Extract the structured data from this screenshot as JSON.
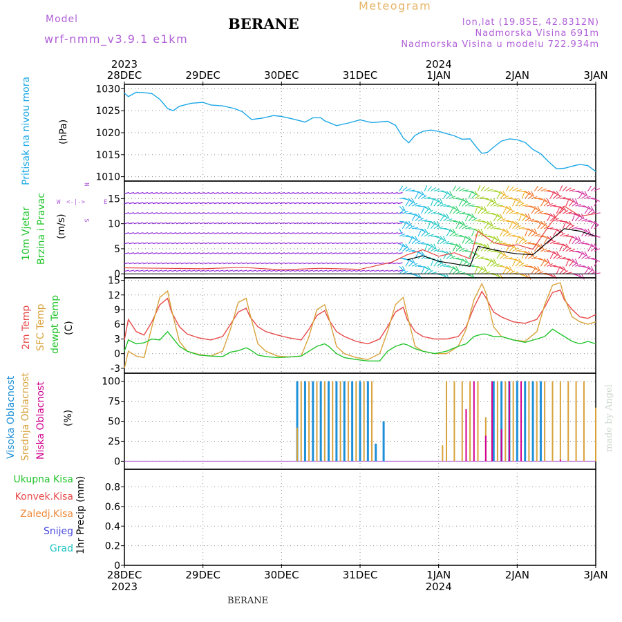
{
  "header": {
    "model_label": "Model",
    "model_name": "wrf-nmm_v3.9.1  e1km",
    "station": "BERANE",
    "product": "Meteogram",
    "coords": "lon,lat (19.85E, 42.8312N)",
    "elevation": "Nadmorska Visina 691m",
    "model_elevation": "Nadmorska Visina u modelu 722.934m"
  },
  "footer": {
    "station": "BERANE",
    "credit": "made by Angel"
  },
  "colors": {
    "pressure": "#1aa7e6",
    "temp2m": "#e84848",
    "sfc": "#d8a23a",
    "dewpt": "#22c42c",
    "cloud_high": "#1e90d8",
    "cloud_mid": "#d8a23a",
    "cloud_low": "#d1008f",
    "wind_calm": "#8a1fd6",
    "wind_speed": "#e64040",
    "gust": "#000000"
  },
  "time_axis": {
    "top_years": [
      {
        "at": 0,
        "label": "2023"
      },
      {
        "at": 4,
        "label": "2024"
      }
    ],
    "bottom_years": [
      {
        "at": 0,
        "label": "2023"
      },
      {
        "at": 4,
        "label": "2024"
      }
    ],
    "days": [
      "28DEC",
      "29DEC",
      "30DEC",
      "31DEC",
      "1JAN",
      "2JAN",
      "3JAN"
    ]
  },
  "panels": {
    "pressure": {
      "ylabel_main": "Pritisak na nivou mora",
      "unit": "(hPa)"
    },
    "wind": {
      "ylabel_1": "10m Vjetar",
      "ylabel_2": "Brzina i Pravac",
      "unit": "(m/s)",
      "compass_n": "N",
      "compass_s": "S",
      "compass_w": "W",
      "compass_e": "E"
    },
    "temp": {
      "label_2m": "2m Temp",
      "label_sfc": "SFC Temp",
      "label_dew": "dewpt Temp",
      "unit": "(C)"
    },
    "cloud": {
      "label_high": "Visoka Oblacnost",
      "label_mid": "Srednja Oblacnost",
      "label_low": "Niska Oblacnost",
      "unit": "(%)"
    },
    "precip": {
      "ylabel": "1hr Precip (mm)",
      "legend": [
        "Ukupna Kisa",
        "Konvek.Kisa",
        "Zaledj.Kisa",
        "Snijeg",
        "Grad"
      ]
    }
  },
  "chart_data": [
    {
      "type": "line",
      "id": "pressure",
      "x_unit": "days since 28DEC 2023 00h",
      "ylim": [
        1009,
        1031
      ],
      "yticks": [
        1010,
        1015,
        1020,
        1025,
        1030
      ],
      "grid": true,
      "series": [
        {
          "name": "Pritisak na nivou mora",
          "color_key": "pressure",
          "x": [
            0,
            0.05,
            0.15,
            0.25,
            0.35,
            0.45,
            0.55,
            0.62,
            0.7,
            0.85,
            1.0,
            1.1,
            1.25,
            1.4,
            1.5,
            1.62,
            1.75,
            1.9,
            2.0,
            2.15,
            2.3,
            2.4,
            2.5,
            2.55,
            2.7,
            2.85,
            3.0,
            3.15,
            3.35,
            3.45,
            3.55,
            3.62,
            3.7,
            3.8,
            3.9,
            4.0,
            4.1,
            4.2,
            4.3,
            4.4,
            4.5,
            4.55,
            4.62,
            4.7,
            4.8,
            4.9,
            5.0,
            5.1,
            5.2,
            5.3,
            5.4,
            5.5,
            5.6,
            5.7,
            5.8,
            5.9,
            6.0
          ],
          "y": [
            1029,
            1028.2,
            1029.2,
            1029.1,
            1028.9,
            1027.6,
            1025.5,
            1025,
            1026,
            1026.7,
            1026.9,
            1026.3,
            1026.1,
            1025.5,
            1024.8,
            1023,
            1023.3,
            1023.9,
            1023.7,
            1023.1,
            1022.4,
            1023.4,
            1023.4,
            1022.7,
            1021.6,
            1022.2,
            1022.9,
            1022.3,
            1022.6,
            1021.7,
            1018.8,
            1017.7,
            1019.4,
            1020.3,
            1020.6,
            1020.3,
            1019.8,
            1019.3,
            1018.5,
            1018.6,
            1016.3,
            1015.3,
            1015.5,
            1016.7,
            1018.1,
            1018.6,
            1018.4,
            1017.8,
            1016.2,
            1015.2,
            1013.4,
            1011.8,
            1011.9,
            1012.4,
            1012.8,
            1012.5,
            1011.2
          ]
        }
      ]
    },
    {
      "type": "scatter",
      "id": "wind",
      "x_unit": "days since 28DEC 2023 00h",
      "ylim": [
        -0.8,
        18.5
      ],
      "yticks": [
        0,
        5,
        10,
        15
      ],
      "grid": true,
      "series": [
        {
          "name": "Brzina",
          "color_key": "wind_speed",
          "x": [
            0,
            0.5,
            1.0,
            1.5,
            2.0,
            2.5,
            3.0,
            3.4,
            3.6,
            3.8,
            4.0,
            4.2,
            4.4,
            4.5,
            4.7,
            4.9,
            5.0,
            5.2,
            5.4,
            5.6,
            5.8,
            6.0
          ],
          "y": [
            1.2,
            1.1,
            1.0,
            1.3,
            0.8,
            1.1,
            0.9,
            2.3,
            3.8,
            4.8,
            3.5,
            4.2,
            3.0,
            8.5,
            6.2,
            5.5,
            5.8,
            4.9,
            9.5,
            13.5,
            11.5,
            12.0
          ]
        },
        {
          "name": "Udar",
          "color_key": "gust",
          "x": [
            3.6,
            3.8,
            4.0,
            4.2,
            4.4,
            4.5,
            4.7,
            4.9,
            5.0,
            5.2,
            5.4,
            5.6,
            5.8,
            6.0
          ],
          "y": [
            2.8,
            3.6,
            2.5,
            2.0,
            1.5,
            5.5,
            4.8,
            4.2,
            4.0,
            3.8,
            6.5,
            9.0,
            8.5,
            7.5
          ]
        }
      ]
    },
    {
      "type": "line",
      "id": "temperature",
      "x_unit": "days since 28DEC 2023 00h",
      "ylim": [
        -4,
        15.5
      ],
      "yticks": [
        -3,
        0,
        3,
        6,
        9,
        12,
        15
      ],
      "grid": true,
      "series": [
        {
          "name": "2m Temp",
          "color_key": "temp2m",
          "x": [
            0,
            0.05,
            0.15,
            0.25,
            0.35,
            0.45,
            0.55,
            0.6,
            0.7,
            0.8,
            0.95,
            1.1,
            1.25,
            1.35,
            1.45,
            1.55,
            1.6,
            1.7,
            1.8,
            1.95,
            2.1,
            2.25,
            2.35,
            2.45,
            2.55,
            2.6,
            2.7,
            2.8,
            2.95,
            3.1,
            3.25,
            3.35,
            3.45,
            3.55,
            3.6,
            3.7,
            3.8,
            3.95,
            4.1,
            4.25,
            4.35,
            4.45,
            4.55,
            4.6,
            4.7,
            4.8,
            4.95,
            5.1,
            5.25,
            5.35,
            5.45,
            5.55,
            5.6,
            5.7,
            5.8,
            5.9,
            6.0
          ],
          "y": [
            2.8,
            7.0,
            4.5,
            3.8,
            6.5,
            10.0,
            11.3,
            8.5,
            5.5,
            4.0,
            3.2,
            2.8,
            3.5,
            6.0,
            8.5,
            9.3,
            7.5,
            5.5,
            4.5,
            3.8,
            3.2,
            2.8,
            5.0,
            7.8,
            8.8,
            7.0,
            4.5,
            3.5,
            2.5,
            2.0,
            3.0,
            5.5,
            8.5,
            9.5,
            7.0,
            4.5,
            3.5,
            3.0,
            3.0,
            3.5,
            5.5,
            9.5,
            12.7,
            11.5,
            8.5,
            7.5,
            6.5,
            6.2,
            7.0,
            9.5,
            12.5,
            13.0,
            11.0,
            9.0,
            7.5,
            7.2,
            8.0
          ]
        },
        {
          "name": "SFC Temp",
          "color_key": "sfc",
          "x": [
            0,
            0.05,
            0.15,
            0.25,
            0.35,
            0.45,
            0.55,
            0.6,
            0.7,
            0.8,
            0.95,
            1.1,
            1.25,
            1.35,
            1.45,
            1.55,
            1.6,
            1.7,
            1.8,
            1.95,
            2.1,
            2.25,
            2.35,
            2.45,
            2.55,
            2.6,
            2.7,
            2.8,
            2.95,
            3.1,
            3.25,
            3.35,
            3.45,
            3.55,
            3.6,
            3.7,
            3.8,
            3.95,
            4.1,
            4.25,
            4.35,
            4.45,
            4.55,
            4.6,
            4.7,
            4.8,
            4.95,
            5.1,
            5.25,
            5.35,
            5.45,
            5.55,
            5.6,
            5.7,
            5.8,
            5.9,
            6.0
          ],
          "y": [
            -3.0,
            0.5,
            -0.5,
            -0.8,
            5.5,
            11.5,
            12.8,
            9.0,
            2.5,
            0.5,
            -0.2,
            -0.5,
            0.5,
            5.0,
            10.5,
            11.3,
            8.0,
            2.0,
            0.5,
            -0.5,
            -0.7,
            -0.5,
            3.5,
            9.0,
            10.0,
            7.5,
            1.5,
            0.0,
            -0.8,
            -1.2,
            0.0,
            4.5,
            10.0,
            11.5,
            8.0,
            1.5,
            0.5,
            0.0,
            0.0,
            1.5,
            5.0,
            11.0,
            14.3,
            12.5,
            5.5,
            3.5,
            2.8,
            2.5,
            4.5,
            10.0,
            14.0,
            14.5,
            11.5,
            7.5,
            6.5,
            6.0,
            6.5
          ]
        },
        {
          "name": "dewpt Temp",
          "color_key": "dewpt",
          "x": [
            0,
            0.05,
            0.15,
            0.25,
            0.35,
            0.45,
            0.55,
            0.6,
            0.7,
            0.8,
            0.95,
            1.1,
            1.25,
            1.35,
            1.45,
            1.55,
            1.6,
            1.7,
            1.8,
            1.95,
            2.1,
            2.25,
            2.35,
            2.45,
            2.55,
            2.6,
            2.7,
            2.8,
            2.95,
            3.1,
            3.25,
            3.35,
            3.45,
            3.55,
            3.6,
            3.7,
            3.8,
            3.95,
            4.1,
            4.25,
            4.35,
            4.45,
            4.55,
            4.6,
            4.7,
            4.8,
            4.95,
            5.1,
            5.25,
            5.35,
            5.45,
            5.55,
            5.6,
            5.7,
            5.8,
            5.9,
            6.0
          ],
          "y": [
            0.5,
            2.8,
            2.0,
            2.2,
            3.0,
            2.8,
            4.5,
            3.5,
            1.5,
            0.5,
            -0.3,
            -0.5,
            -0.6,
            0.3,
            0.6,
            1.2,
            0.8,
            -0.3,
            -0.6,
            -0.8,
            -0.7,
            -0.5,
            0.5,
            1.5,
            2.0,
            1.5,
            0.0,
            -0.8,
            -1.2,
            -1.5,
            -1.5,
            0.5,
            1.5,
            2.0,
            1.8,
            1.0,
            0.5,
            0.0,
            0.5,
            1.5,
            2.0,
            3.5,
            4.0,
            4.0,
            3.5,
            3.5,
            2.8,
            2.3,
            3.0,
            3.5,
            5.0,
            4.0,
            3.5,
            2.5,
            2.0,
            2.5,
            2.0
          ]
        }
      ]
    },
    {
      "type": "bar",
      "id": "cloud",
      "x_unit": "days since 28DEC 2023 00h",
      "ylim": [
        -10,
        110
      ],
      "yticks": [
        0,
        25,
        50,
        75,
        100
      ],
      "grid": true,
      "series": [
        {
          "name": "Visoka Oblacnost",
          "color_key": "cloud_high",
          "x": [
            2.2,
            2.3,
            2.4,
            2.5,
            2.6,
            2.7,
            2.8,
            2.9,
            3.0,
            3.1,
            3.2,
            3.3,
            4.7,
            4.8,
            4.9,
            5.0,
            5.1,
            5.2,
            5.3
          ],
          "y": [
            100,
            100,
            100,
            100,
            100,
            100,
            100,
            100,
            100,
            100,
            22,
            50,
            100,
            100,
            100,
            100,
            100,
            100,
            100
          ]
        },
        {
          "name": "Srednja Oblacnost",
          "color_key": "cloud_mid",
          "x": [
            2.2,
            2.25,
            2.35,
            2.45,
            2.55,
            2.65,
            2.75,
            2.85,
            2.95,
            3.05,
            3.15,
            4.05,
            4.1,
            4.2,
            4.3,
            4.4,
            4.5,
            4.6,
            4.75,
            4.85,
            4.95,
            5.05,
            5.15,
            5.25,
            5.35,
            5.45,
            5.55,
            5.65,
            5.75,
            5.85,
            5.95,
            6.0
          ],
          "y": [
            42,
            100,
            100,
            100,
            100,
            100,
            100,
            100,
            100,
            100,
            100,
            20,
            100,
            100,
            100,
            100,
            100,
            55,
            100,
            100,
            100,
            100,
            100,
            100,
            100,
            100,
            100,
            100,
            100,
            100,
            0,
            67
          ]
        },
        {
          "name": "Niska Oblacnost",
          "color_key": "cloud_low",
          "x": [
            4.35,
            4.45,
            4.6,
            4.68,
            4.8,
            4.9,
            5.05,
            5.55
          ],
          "y": [
            65,
            100,
            32,
            100,
            40,
            100,
            100,
            2
          ]
        }
      ]
    },
    {
      "type": "bar",
      "id": "precip",
      "x_unit": "days since 28DEC 2023 00h",
      "ylim": [
        0,
        0.98
      ],
      "yticks": [
        0,
        0.2,
        0.4,
        0.6,
        0.8
      ],
      "grid": true,
      "series": [
        {
          "name": "Ukupna Kisa",
          "x": [],
          "y": []
        }
      ]
    }
  ]
}
